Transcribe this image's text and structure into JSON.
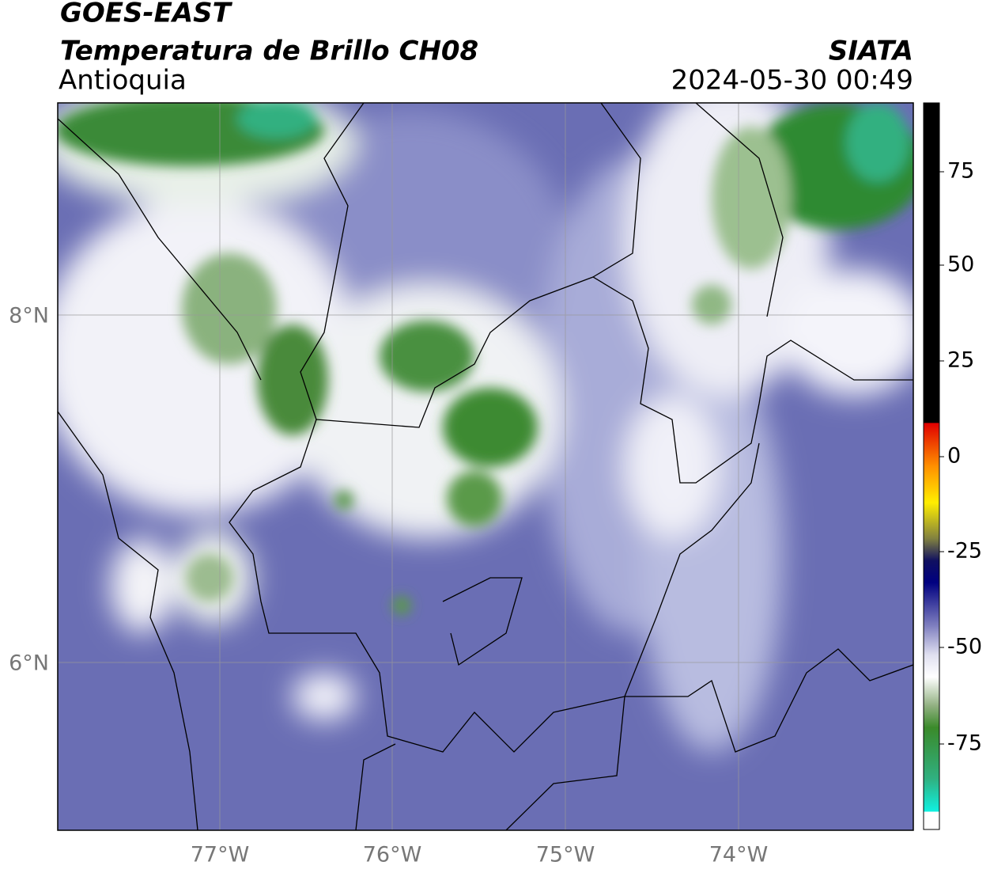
{
  "header": {
    "satellite": "GOES-EAST",
    "product": "Temperatura de Brillo CH08",
    "region": "Antioquia",
    "source": "SIATA",
    "timestamp": "2024-05-30 00:49"
  },
  "map": {
    "lon_ticks": [
      "77°W",
      "76°W",
      "75°W",
      "74°W"
    ],
    "lat_ticks": [
      "8°N",
      "6°N"
    ]
  },
  "colorbar": {
    "ticks": [
      75,
      50,
      25,
      0,
      -25,
      -50,
      -75
    ]
  }
}
